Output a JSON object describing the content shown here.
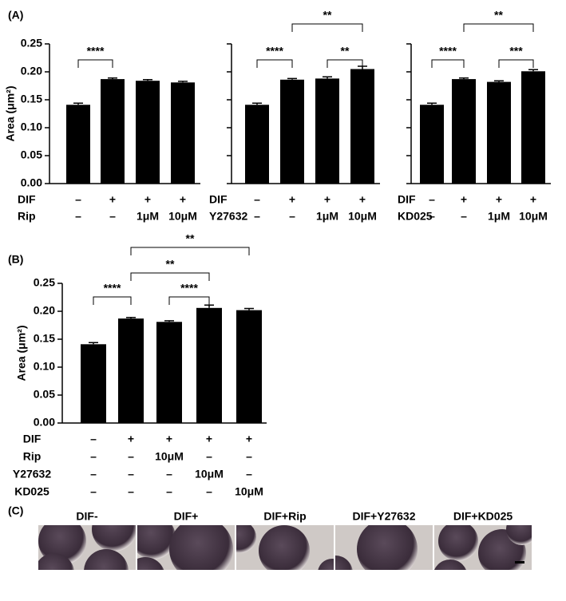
{
  "chart_data": [
    {
      "type": "bar",
      "panel_label": "(A)",
      "ylabel": "Area (μm²)",
      "color": "#000000",
      "ylim": [
        0,
        0.25
      ],
      "yticks": [
        {
          "value": 0,
          "label": "0.00"
        },
        0.05,
        {
          "value": 0.1,
          "label": "0.10"
        },
        0.15,
        {
          "value": 0.2,
          "label": "0.20"
        },
        0.25
      ],
      "tick_labels": true,
      "values": [
        0.141,
        0.187,
        0.184,
        0.181
      ],
      "errors": [
        0.003,
        0.002,
        0.002,
        0.002
      ],
      "conditions": [
        {
          "name": "DIF",
          "labels": [
            "–",
            "+",
            "+",
            "+"
          ]
        },
        {
          "name": "Rip",
          "labels": [
            "–",
            "–",
            "1μM",
            "10μM"
          ]
        }
      ],
      "significance": [
        {
          "between": [
            0,
            1
          ],
          "label": "****"
        }
      ]
    },
    {
      "type": "bar",
      "color": "#000000",
      "ylim": [
        0,
        0.25
      ],
      "yticks": [
        0,
        0.05,
        0.1,
        0.15,
        0.2,
        0.25
      ],
      "tick_labels": false,
      "values": [
        0.141,
        0.186,
        0.188,
        0.205
      ],
      "errors": [
        0.003,
        0.002,
        0.003,
        0.005
      ],
      "conditions": [
        {
          "name": "DIF",
          "labels": [
            "–",
            "+",
            "+",
            "+"
          ]
        },
        {
          "name": "Y27632",
          "labels": [
            "–",
            "–",
            "1μM",
            "10μM"
          ]
        }
      ],
      "significance": [
        {
          "between": [
            0,
            1
          ],
          "label": "****"
        },
        {
          "between": [
            2,
            3
          ],
          "label": "**"
        },
        {
          "between": [
            1,
            3
          ],
          "label": "**"
        }
      ]
    },
    {
      "type": "bar",
      "color": "#000000",
      "ylim": [
        0,
        0.25
      ],
      "yticks": [
        0,
        0.05,
        0.1,
        0.15,
        0.2,
        0.25
      ],
      "tick_labels": false,
      "values": [
        0.141,
        0.187,
        0.182,
        0.201
      ],
      "errors": [
        0.003,
        0.002,
        0.002,
        0.003
      ],
      "conditions": [
        {
          "name": "DIF",
          "labels": [
            "–",
            "+",
            "+",
            "+"
          ]
        },
        {
          "name": "KD025",
          "labels": [
            "–",
            "–",
            "1μM",
            "10μM"
          ]
        }
      ],
      "significance": [
        {
          "between": [
            0,
            1
          ],
          "label": "****"
        },
        {
          "between": [
            2,
            3
          ],
          "label": "***"
        },
        {
          "between": [
            1,
            3
          ],
          "label": "**"
        }
      ]
    },
    {
      "type": "bar",
      "panel_label": "(B)",
      "ylabel": "Area (μm²)",
      "color": "#000000",
      "ylim": [
        0,
        0.25
      ],
      "yticks": [
        {
          "value": 0,
          "label": "0.00"
        },
        0.05,
        {
          "value": 0.1,
          "label": "0.10"
        },
        0.15,
        {
          "value": 0.2,
          "label": "0.20"
        },
        0.25
      ],
      "tick_labels": true,
      "values": [
        0.141,
        0.187,
        0.181,
        0.206,
        0.202
      ],
      "errors": [
        0.003,
        0.002,
        0.002,
        0.005,
        0.003
      ],
      "conditions": [
        {
          "name": "DIF",
          "labels": [
            "–",
            "+",
            "+",
            "+",
            "+"
          ]
        },
        {
          "name": "Rip",
          "labels": [
            "–",
            "–",
            "10μM",
            "–",
            "–"
          ]
        },
        {
          "name": "Y27632",
          "labels": [
            "–",
            "–",
            "–",
            "10μM",
            "–"
          ]
        },
        {
          "name": "KD025",
          "labels": [
            "–",
            "–",
            "–",
            "–",
            "10μM"
          ]
        }
      ],
      "significance": [
        {
          "between": [
            0,
            1
          ],
          "label": "****"
        },
        {
          "between": [
            2,
            3
          ],
          "label": "****"
        },
        {
          "between": [
            1,
            3
          ],
          "label": "**"
        },
        {
          "between": [
            1,
            4
          ],
          "label": "**"
        }
      ]
    }
  ],
  "panel_c": {
    "label": "(C)",
    "titles": [
      "DIF-",
      "DIF+",
      "DIF+Rip",
      "DIF+Y27632",
      "DIF+KD025"
    ]
  }
}
